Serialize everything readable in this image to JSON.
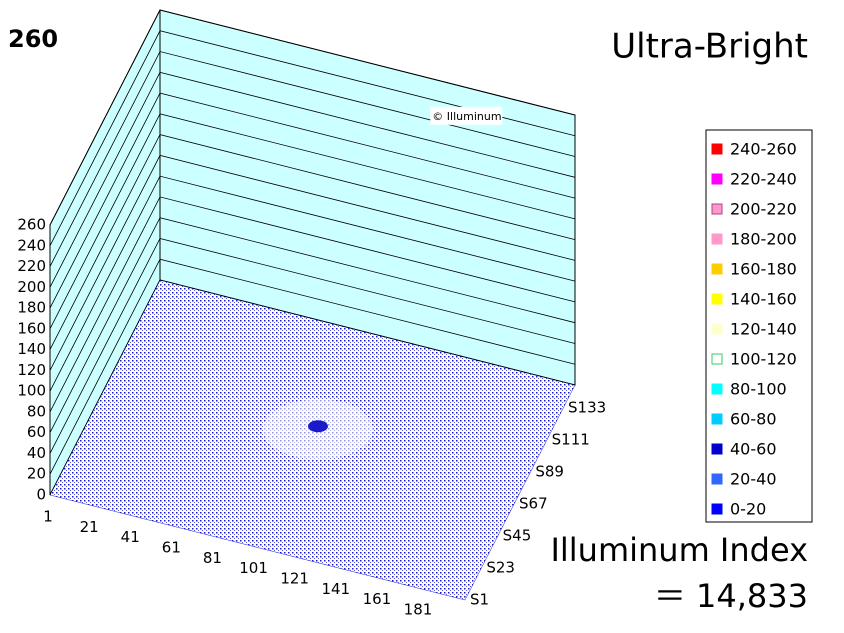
{
  "chart_data": {
    "type": "surface3d",
    "corner_label": "260",
    "title": "Ultra-Bright",
    "watermark": "© Illuminum",
    "ylim": [
      0,
      260
    ],
    "yticks": [
      0,
      20,
      40,
      60,
      80,
      100,
      120,
      140,
      160,
      180,
      200,
      220,
      240,
      260
    ],
    "xlim": [
      1,
      181
    ],
    "xticks": [
      1,
      21,
      41,
      61,
      81,
      101,
      121,
      141,
      161,
      181
    ],
    "zticks": [
      "S1",
      "S23",
      "S45",
      "S67",
      "S89",
      "S111",
      "S133"
    ],
    "wall_color": "#ccffff",
    "floor_color": "#1a1acc",
    "legend": [
      {
        "name": "240-260",
        "color": "#ff0000"
      },
      {
        "name": "220-240",
        "color": "#ff00ff"
      },
      {
        "name": "200-220",
        "color": "#ff99cc"
      },
      {
        "name": "180-200",
        "color": "#ff99cc"
      },
      {
        "name": "160-180",
        "color": "#ffcc00"
      },
      {
        "name": "140-160",
        "color": "#ffff00"
      },
      {
        "name": "120-140",
        "color": "#ffffcc"
      },
      {
        "name": "100-120",
        "color": "#ffffff"
      },
      {
        "name": "80-100",
        "color": "#00ffff"
      },
      {
        "name": "60-80",
        "color": "#00ccff"
      },
      {
        "name": "40-60",
        "color": "#0000cc"
      },
      {
        "name": "20-40",
        "color": "#3366ff"
      },
      {
        "name": "0-20",
        "color": "#0000ff"
      }
    ],
    "index_label": "Illuminum Index",
    "index_text": "＝ 14,833"
  }
}
